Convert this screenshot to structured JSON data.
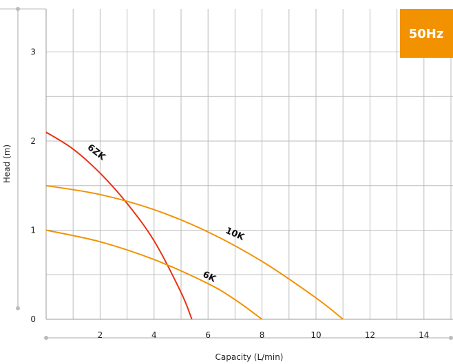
{
  "chart_data": {
    "type": "line",
    "badge": "50Hz",
    "xlabel": "Capacity (L/min)",
    "ylabel": "Head (m)",
    "xlim": [
      0,
      15
    ],
    "ylim": [
      0,
      3.5
    ],
    "x_ticks": [
      2,
      4,
      6,
      8,
      10,
      12,
      14
    ],
    "y_ticks": [
      0,
      1,
      2,
      3
    ],
    "grid": true,
    "colors": {
      "grid": "#bbbbbb",
      "badge": "#f39200",
      "curve_6zk": "#e63312",
      "curve_10k": "#f39200",
      "curve_6k": "#f39200"
    },
    "series": [
      {
        "name": "6ZK",
        "x": [
          0,
          1,
          2,
          3,
          4,
          5,
          5.4
        ],
        "y": [
          2.1,
          1.91,
          1.64,
          1.3,
          0.88,
          0.3,
          0.0
        ]
      },
      {
        "name": "10K",
        "x": [
          0,
          2,
          4,
          6,
          8,
          10,
          11
        ],
        "y": [
          1.5,
          1.4,
          1.23,
          0.98,
          0.65,
          0.24,
          0.0
        ]
      },
      {
        "name": "6K",
        "x": [
          0,
          2,
          4,
          6,
          7,
          8
        ],
        "y": [
          1.0,
          0.87,
          0.67,
          0.4,
          0.22,
          0.0
        ]
      }
    ]
  }
}
